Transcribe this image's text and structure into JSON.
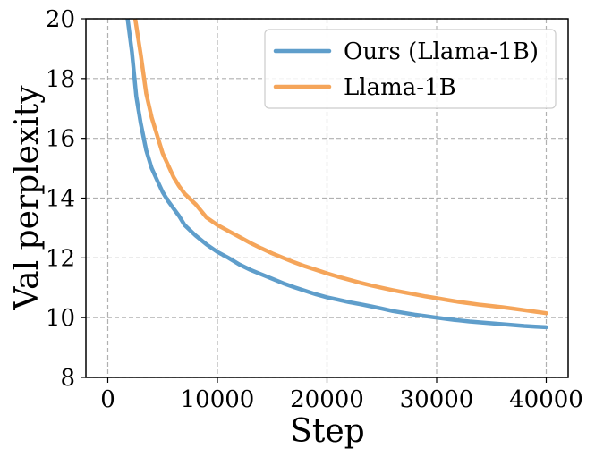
{
  "chart_data": {
    "type": "line",
    "xlabel": "Step",
    "ylabel": "Val perplexity",
    "xlim": [
      -2000,
      42000
    ],
    "ylim": [
      8,
      20
    ],
    "xticks": [
      0,
      10000,
      20000,
      30000,
      40000
    ],
    "xtick_labels": [
      "0",
      "10000",
      "20000",
      "30000",
      "40000"
    ],
    "yticks": [
      8,
      10,
      12,
      14,
      16,
      18,
      20
    ],
    "ytick_labels": [
      "8",
      "10",
      "12",
      "14",
      "16",
      "18",
      "20"
    ],
    "grid": true,
    "legend_position": "top-right",
    "series": [
      {
        "name": "Ours (Llama-1B)",
        "color": "#5f9ecb",
        "x": [
          1800,
          2200,
          2600,
          3000,
          3500,
          4000,
          4500,
          5000,
          5500,
          6000,
          6500,
          7000,
          8000,
          9000,
          10000,
          11000,
          12000,
          13000,
          14000,
          15000,
          16000,
          17000,
          18000,
          19000,
          20000,
          21000,
          22000,
          23000,
          24000,
          25000,
          26000,
          27000,
          28000,
          29000,
          30000,
          31000,
          32000,
          33000,
          34000,
          35000,
          36000,
          37000,
          38000,
          39000,
          40000
        ],
        "y": [
          20.0,
          18.9,
          17.4,
          16.5,
          15.6,
          15.0,
          14.6,
          14.2,
          13.9,
          13.65,
          13.4,
          13.1,
          12.75,
          12.45,
          12.2,
          12.0,
          11.78,
          11.6,
          11.45,
          11.3,
          11.15,
          11.02,
          10.9,
          10.78,
          10.68,
          10.6,
          10.52,
          10.45,
          10.38,
          10.3,
          10.22,
          10.16,
          10.1,
          10.05,
          10.0,
          9.95,
          9.91,
          9.87,
          9.84,
          9.81,
          9.78,
          9.75,
          9.72,
          9.7,
          9.68
        ]
      },
      {
        "name": "Llama-1B",
        "color": "#f5a55a",
        "x": [
          2500,
          3000,
          3500,
          4000,
          4500,
          5000,
          5500,
          6000,
          6500,
          7000,
          8000,
          9000,
          10000,
          11000,
          12000,
          13000,
          14000,
          15000,
          16000,
          17000,
          18000,
          19000,
          20000,
          21000,
          22000,
          23000,
          24000,
          25000,
          26000,
          27000,
          28000,
          29000,
          30000,
          31000,
          32000,
          33000,
          34000,
          35000,
          36000,
          37000,
          38000,
          39000,
          40000
        ],
        "y": [
          20.0,
          18.8,
          17.5,
          16.7,
          16.1,
          15.5,
          15.1,
          14.7,
          14.4,
          14.15,
          13.8,
          13.35,
          13.1,
          12.9,
          12.7,
          12.5,
          12.32,
          12.15,
          12.0,
          11.85,
          11.72,
          11.6,
          11.48,
          11.37,
          11.27,
          11.17,
          11.08,
          11.0,
          10.92,
          10.85,
          10.78,
          10.71,
          10.65,
          10.59,
          10.53,
          10.48,
          10.43,
          10.39,
          10.35,
          10.3,
          10.25,
          10.2,
          10.15
        ]
      }
    ]
  }
}
